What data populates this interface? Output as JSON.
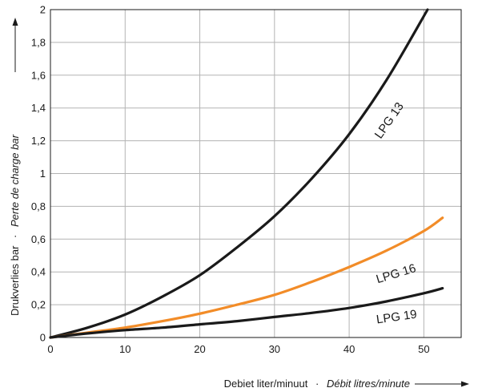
{
  "chart_data": {
    "type": "line",
    "xlabel_nl": "Debiet liter/minuut",
    "xlabel_sep": "·",
    "xlabel_fr": "Débit litres/minute",
    "ylabel_nl": "Drukverlies bar",
    "ylabel_sep": "·",
    "ylabel_fr": "Perte de charge bar",
    "xlim": [
      0,
      55
    ],
    "ylim": [
      0,
      2
    ],
    "x_ticks": [
      0,
      10,
      20,
      30,
      40,
      50
    ],
    "x_tick_labels": [
      "0",
      "10",
      "20",
      "30",
      "40",
      "50"
    ],
    "y_ticks": [
      0,
      0.2,
      0.4,
      0.6,
      0.8,
      1.0,
      1.2,
      1.4,
      1.6,
      1.8,
      2.0
    ],
    "y_tick_labels": [
      "0",
      "0,2",
      "0,4",
      "0,6",
      "0,8",
      "1",
      "1,2",
      "1,4",
      "1,6",
      "1,8",
      "2"
    ],
    "grid": true,
    "series": [
      {
        "name": "LPG 13",
        "color": "#1a1a1a",
        "x": [
          0,
          5,
          10,
          15,
          20,
          25,
          30,
          35,
          40,
          45,
          50.5
        ],
        "y": [
          0,
          0.06,
          0.14,
          0.25,
          0.38,
          0.55,
          0.74,
          0.97,
          1.24,
          1.57,
          2.0
        ]
      },
      {
        "name": "LPG 16",
        "color": "#f28c28",
        "x": [
          0,
          5,
          10,
          15,
          20,
          25,
          30,
          35,
          40,
          45,
          50,
          52.5
        ],
        "y": [
          0,
          0.03,
          0.06,
          0.1,
          0.145,
          0.2,
          0.26,
          0.34,
          0.43,
          0.53,
          0.65,
          0.73
        ]
      },
      {
        "name": "LPG 19",
        "color": "#1a1a1a",
        "x": [
          0,
          5,
          10,
          15,
          20,
          25,
          30,
          35,
          40,
          45,
          50,
          52.5
        ],
        "y": [
          0,
          0.025,
          0.045,
          0.06,
          0.08,
          0.1,
          0.125,
          0.15,
          0.18,
          0.22,
          0.27,
          0.3
        ]
      }
    ]
  }
}
